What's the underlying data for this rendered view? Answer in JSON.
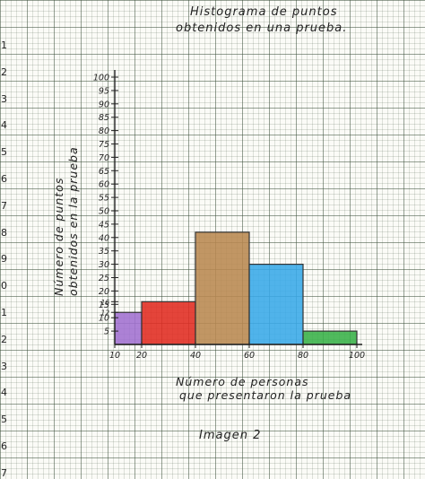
{
  "title_lines": [
    "Histograma de puntos",
    "obtenidos en una prueba."
  ],
  "ylabel_lines": [
    "Número de puntos",
    "obtenidos en la prueba"
  ],
  "xlabel_lines": [
    "Número de personas",
    "que presentaron la prueba"
  ],
  "caption": "Imagen 2",
  "margin_numbers": [
    "1",
    "2",
    "3",
    "4",
    "5",
    "6",
    "7",
    "8",
    "9",
    "0",
    "1",
    "2",
    "3",
    "4",
    "5",
    "6",
    "7"
  ],
  "chart_data": {
    "type": "bar",
    "subtype": "histogram",
    "x_ticks": [
      10,
      20,
      40,
      60,
      80,
      100
    ],
    "y_ticks": [
      5,
      10,
      12,
      15,
      16,
      20,
      25,
      30,
      35,
      40,
      45,
      50,
      55,
      60,
      65,
      70,
      75,
      80,
      85,
      90,
      95,
      100
    ],
    "ylim": [
      0,
      100
    ],
    "bins": [
      {
        "x_start": 10,
        "x_end": 20,
        "value": 12,
        "color": "#a070d0"
      },
      {
        "x_start": 20,
        "x_end": 40,
        "value": 16,
        "color": "#e02a20"
      },
      {
        "x_start": 40,
        "x_end": 60,
        "value": 42,
        "color": "#b88850"
      },
      {
        "x_start": 60,
        "x_end": 80,
        "value": 30,
        "color": "#38a8e8"
      },
      {
        "x_start": 80,
        "x_end": 100,
        "value": 5,
        "color": "#38b048"
      }
    ],
    "grid": true
  }
}
